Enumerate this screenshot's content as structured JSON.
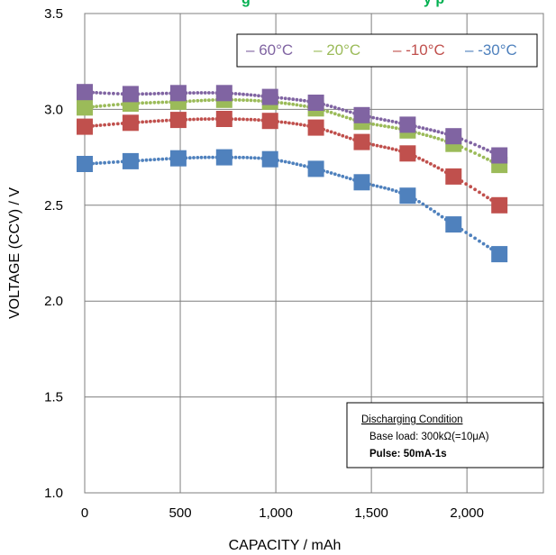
{
  "chart_data": {
    "type": "scatter",
    "title": "g",
    "title_suffix": "y      p",
    "xlabel": "CAPACITY / mAh",
    "ylabel": "VOLTAGE (CCV) / V",
    "xlim": [
      0,
      2400
    ],
    "ylim": [
      1.0,
      3.5
    ],
    "x_ticks": [
      "0",
      "500",
      "1,000",
      "1,500",
      "2,000"
    ],
    "x_tick_values": [
      0,
      500,
      1000,
      1500,
      2000
    ],
    "y_ticks": [
      "1.0",
      "1.5",
      "2.0",
      "2.5",
      "3.0",
      "3.5"
    ],
    "y_tick_values": [
      1.0,
      1.5,
      2.0,
      2.5,
      3.0,
      3.5
    ],
    "grid": true,
    "legend_position": "top-right",
    "x": [
      0,
      240,
      490,
      730,
      970,
      1210,
      1450,
      1690,
      1930,
      2170
    ],
    "series": [
      {
        "name": "60°C",
        "color": "#8064a2",
        "label_color": "#8064a2",
        "values": [
          3.09,
          3.08,
          3.085,
          3.085,
          3.065,
          3.035,
          2.97,
          2.92,
          2.86,
          2.76
        ]
      },
      {
        "name": "20°C",
        "color": "#9bbb59",
        "label_color": "#9bbb59",
        "values": [
          3.01,
          3.03,
          3.04,
          3.05,
          3.04,
          3.005,
          2.935,
          2.89,
          2.82,
          2.71
        ]
      },
      {
        "name": "-10°C",
        "color": "#c0504d",
        "label_color": "#c0504d",
        "values": [
          2.91,
          2.93,
          2.945,
          2.95,
          2.94,
          2.905,
          2.83,
          2.77,
          2.65,
          2.5
        ]
      },
      {
        "name": "-30°C",
        "color": "#4f81bd",
        "label_color": "#4f81bd",
        "values": [
          2.715,
          2.73,
          2.745,
          2.75,
          2.74,
          2.69,
          2.62,
          2.55,
          2.4,
          2.245
        ]
      }
    ],
    "annotation": {
      "title": "Discharging Condition",
      "line1": "Base load: 300kΩ(=10μA)",
      "line2": "Pulse: 50mA-1s"
    }
  }
}
